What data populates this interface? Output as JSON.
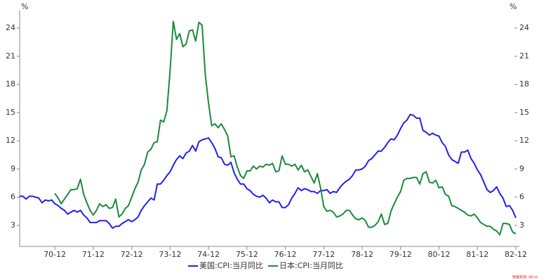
{
  "chart_data": {
    "type": "line",
    "y_unit_left": "%",
    "y_unit_right": "%",
    "categories": [
      null,
      null,
      null,
      null,
      null,
      null,
      null,
      null,
      null,
      null,
      null,
      "70-12",
      null,
      null,
      null,
      null,
      null,
      null,
      null,
      null,
      null,
      null,
      null,
      "71-12",
      null,
      null,
      null,
      null,
      null,
      null,
      null,
      null,
      null,
      null,
      null,
      "72-12",
      null,
      null,
      null,
      null,
      null,
      null,
      null,
      null,
      null,
      null,
      null,
      "73-12",
      null,
      null,
      null,
      null,
      null,
      null,
      null,
      null,
      null,
      null,
      null,
      "74-12",
      null,
      null,
      null,
      null,
      null,
      null,
      null,
      null,
      null,
      null,
      null,
      "75-12",
      null,
      null,
      null,
      null,
      null,
      null,
      null,
      null,
      null,
      null,
      null,
      "76-12",
      null,
      null,
      null,
      null,
      null,
      null,
      null,
      null,
      null,
      null,
      null,
      "77-12",
      null,
      null,
      null,
      null,
      null,
      null,
      null,
      null,
      null,
      null,
      null,
      "78-12",
      null,
      null,
      null,
      null,
      null,
      null,
      null,
      null,
      null,
      null,
      null,
      "79-12",
      null,
      null,
      null,
      null,
      null,
      null,
      null,
      null,
      null,
      null,
      null,
      "80-12",
      null,
      null,
      null,
      null,
      null,
      null,
      null,
      null,
      null,
      null,
      null,
      "81-12",
      null,
      null,
      null,
      null,
      null,
      null,
      null,
      null,
      null,
      null,
      null,
      "82-12"
    ],
    "series": [
      {
        "name": "美国:CPI:当月同比",
        "color": "#2020ee",
        "axis": "y",
        "values": [
          6.1,
          6.1,
          5.8,
          6.1,
          6.1,
          6.0,
          5.9,
          5.4,
          5.7,
          5.6,
          5.7,
          5.3,
          5.1,
          4.8,
          4.6,
          4.2,
          4.4,
          4.6,
          4.4,
          4.6,
          4.1,
          3.8,
          3.3,
          3.3,
          3.3,
          3.5,
          3.5,
          3.5,
          3.2,
          2.7,
          2.9,
          2.9,
          3.2,
          3.4,
          3.6,
          3.4,
          3.6,
          3.9,
          4.6,
          5.1,
          5.5,
          5.9,
          5.7,
          7.4,
          7.4,
          7.8,
          8.3,
          8.7,
          9.4,
          10.0,
          10.4,
          10.1,
          10.7,
          10.9,
          11.5,
          10.9,
          11.9,
          12.1,
          12.2,
          12.3,
          11.8,
          11.2,
          10.3,
          10.2,
          9.5,
          9.4,
          9.7,
          8.6,
          7.9,
          7.4,
          7.4,
          6.9,
          6.7,
          6.3,
          6.1,
          6.0,
          6.2,
          5.9,
          5.4,
          5.7,
          5.5,
          5.5,
          4.9,
          4.9,
          5.2,
          5.9,
          6.4,
          7.0,
          6.7,
          6.9,
          6.8,
          6.6,
          6.6,
          6.4,
          6.7,
          6.7,
          6.8,
          6.4,
          6.6,
          6.5,
          7.0,
          7.4,
          7.7,
          7.9,
          8.3,
          8.9,
          8.9,
          9.0,
          9.3,
          9.9,
          10.1,
          10.5,
          10.9,
          10.9,
          11.3,
          11.8,
          12.2,
          12.1,
          12.6,
          13.3,
          13.9,
          14.2,
          14.8,
          14.7,
          14.4,
          14.4,
          13.1,
          12.9,
          12.6,
          12.8,
          12.6,
          12.5,
          11.8,
          11.4,
          10.5,
          10.0,
          9.8,
          9.6,
          10.8,
          10.8,
          11.0,
          10.1,
          9.6,
          8.9,
          8.4,
          7.6,
          6.8,
          6.5,
          6.7,
          7.1,
          6.4,
          5.9,
          5.0,
          5.1,
          4.6,
          3.8
        ]
      },
      {
        "name": "日本:CPI:当月同比",
        "color": "#1a8a3e",
        "axis": "y2",
        "values": [
          null,
          null,
          null,
          null,
          null,
          null,
          null,
          null,
          null,
          null,
          null,
          6.4,
          5.9,
          5.3,
          5.8,
          6.3,
          6.8,
          6.8,
          6.9,
          7.9,
          6.3,
          5.4,
          4.6,
          4.1,
          4.6,
          5.3,
          5.0,
          5.2,
          4.8,
          4.9,
          5.8,
          3.9,
          4.2,
          4.8,
          5.1,
          6.0,
          6.9,
          7.6,
          8.9,
          9.5,
          10.8,
          11.1,
          11.8,
          11.9,
          14.2,
          14.0,
          15.2,
          19.5,
          24.7,
          22.8,
          23.4,
          22.0,
          22.3,
          23.7,
          23.8,
          22.6,
          24.6,
          24.3,
          19.0,
          16.0,
          13.6,
          13.8,
          13.4,
          13.8,
          13.2,
          12.5,
          10.3,
          10.4,
          9.2,
          8.3,
          8.0,
          8.8,
          8.8,
          9.3,
          9.0,
          9.3,
          9.2,
          9.5,
          9.4,
          9.6,
          8.7,
          8.8,
          10.4,
          9.5,
          9.5,
          9.3,
          9.5,
          8.9,
          9.4,
          8.7,
          8.9,
          8.2,
          7.5,
          8.5,
          7.0,
          5.0,
          4.5,
          4.6,
          4.4,
          3.9,
          4.0,
          4.2,
          4.6,
          4.6,
          4.1,
          3.7,
          3.6,
          3.8,
          3.5,
          2.8,
          2.8,
          3.0,
          3.4,
          4.2,
          3.1,
          3.2,
          4.5,
          5.3,
          6.0,
          6.6,
          7.8,
          8.0,
          8.0,
          8.1,
          8.1,
          7.4,
          8.5,
          8.7,
          7.6,
          7.5,
          7.8,
          7.0,
          7.1,
          6.3,
          6.1,
          5.1,
          5.0,
          4.8,
          4.6,
          4.4,
          4.1,
          4.0,
          4.2,
          3.8,
          3.3,
          3.1,
          2.9,
          2.9,
          2.6,
          2.4,
          2.0,
          3.2,
          3.2,
          3.1,
          2.3,
          2.1
        ]
      }
    ],
    "ylim": [
      0.8,
      25.8
    ],
    "yticks": [
      3,
      6,
      9,
      12,
      15,
      18,
      21,
      24
    ],
    "y2lim": [
      0.8,
      25.8
    ],
    "y2ticks": [
      3,
      6,
      9,
      12,
      15,
      18,
      21,
      24
    ],
    "grid": false,
    "legend": "bottom",
    "source": "数据来源: Wind"
  }
}
